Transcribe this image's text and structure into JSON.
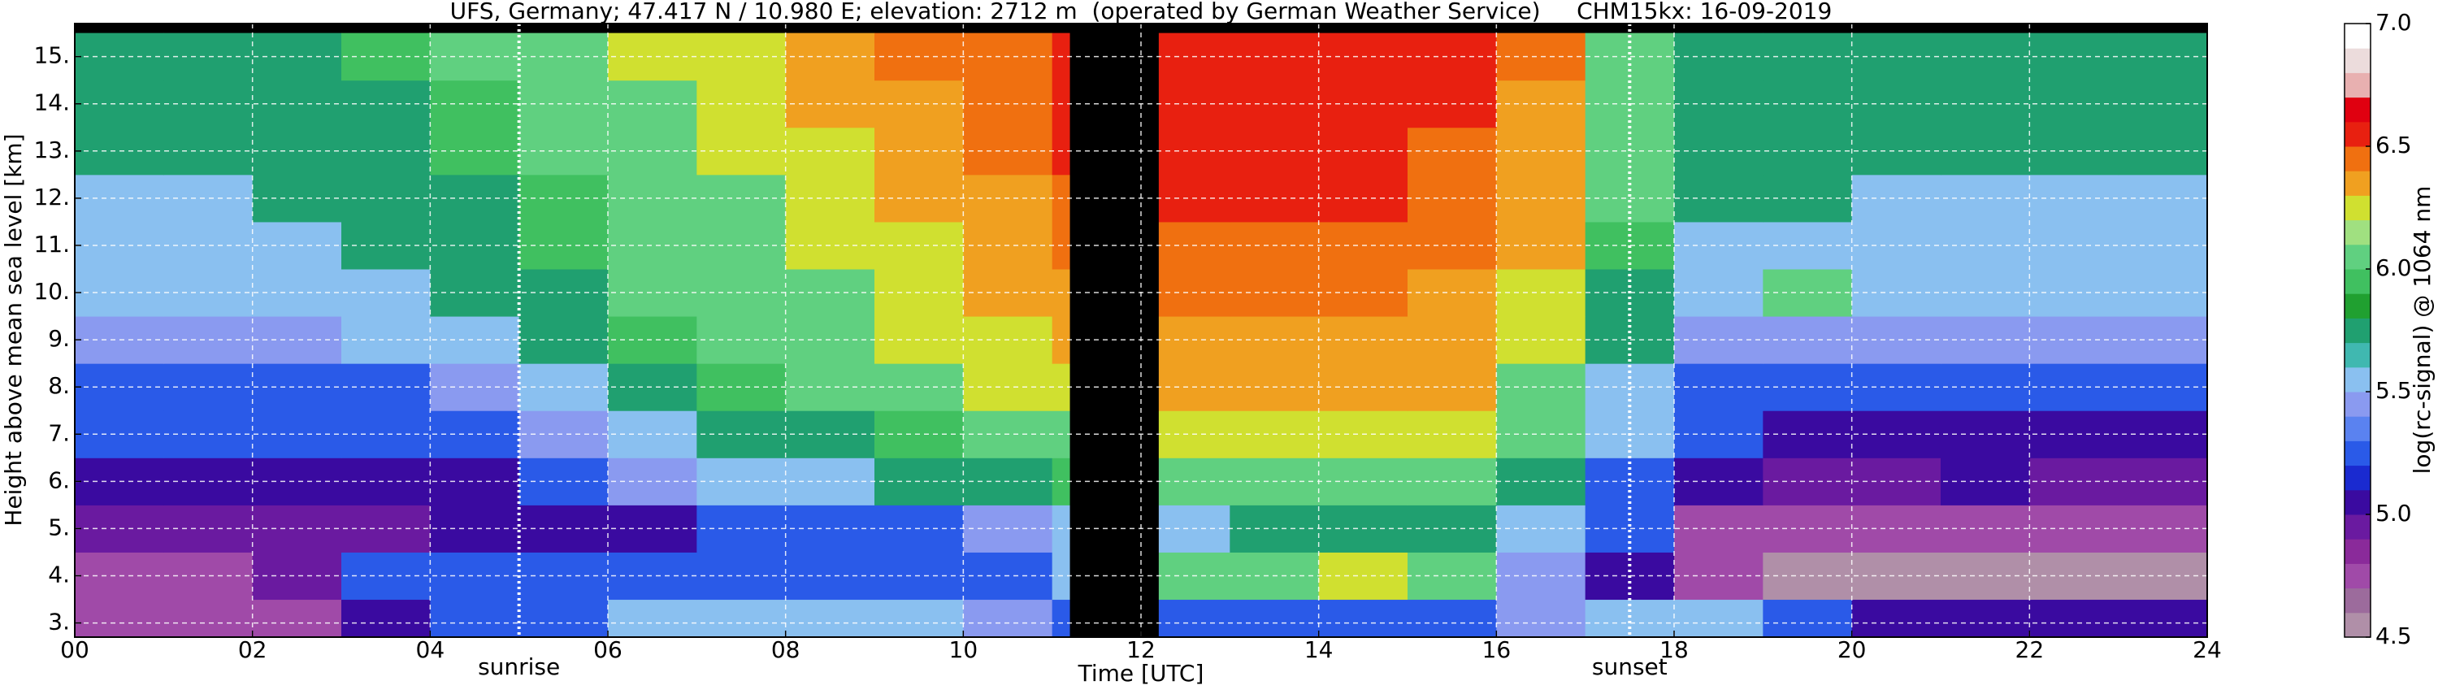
{
  "chart_data": {
    "type": "heatmap",
    "title": "UFS, Germany; 47.417 N / 10.980 E; elevation: 2712 m  (operated by German Weather Service)     CHM15kx: 16-09-2019",
    "xlabel": "Time [UTC]",
    "ylabel": "Height above mean sea level [km]",
    "xlim": [
      0,
      24
    ],
    "xticks": [
      {
        "value": 0,
        "label": "00"
      },
      {
        "value": 2,
        "label": "02"
      },
      {
        "value": 4,
        "label": "04"
      },
      {
        "value": 6,
        "label": "06"
      },
      {
        "value": 8,
        "label": "08"
      },
      10,
      12,
      14,
      16,
      18,
      20,
      22,
      24
    ],
    "ylim": [
      2.7,
      15.7
    ],
    "yticks": [
      {
        "value": 3,
        "label": "3."
      },
      {
        "value": 4,
        "label": "4."
      },
      {
        "value": 5,
        "label": "5."
      },
      {
        "value": 6,
        "label": "6."
      },
      {
        "value": 7,
        "label": "7."
      },
      {
        "value": 8,
        "label": "8."
      },
      {
        "value": 9,
        "label": "9."
      },
      {
        "value": 10,
        "label": "10."
      },
      {
        "value": 11,
        "label": "11."
      },
      {
        "value": 12,
        "label": "12."
      },
      {
        "value": 13,
        "label": "13."
      },
      {
        "value": 14,
        "label": "14."
      },
      {
        "value": 15,
        "label": "15."
      }
    ],
    "grid": true,
    "markers": [
      {
        "label": "sunrise",
        "x": 5.0
      },
      {
        "label": "sunset",
        "x": 17.5
      }
    ],
    "no_data": [
      11.2,
      12.2
    ],
    "x": [
      0,
      1,
      2,
      3,
      4,
      5,
      6,
      7,
      8,
      9,
      10,
      11,
      12,
      13,
      14,
      15,
      16,
      17,
      18,
      19,
      20,
      21,
      22,
      23
    ],
    "y": [
      3,
      4,
      5,
      6,
      7,
      8,
      9,
      10,
      11,
      12,
      13,
      14,
      15
    ],
    "z": [
      [
        4.7,
        4.7,
        4.8,
        5.0,
        5.2,
        5.3,
        5.5,
        5.6,
        5.6,
        5.5,
        5.4,
        5.3,
        5.3,
        5.3,
        5.3,
        5.3,
        5.4,
        5.5,
        5.5,
        5.2,
        5.1,
        5.0,
        5.0,
        5.0
      ],
      [
        4.8,
        4.8,
        4.9,
        5.2,
        5.3,
        5.3,
        5.3,
        5.2,
        5.2,
        5.2,
        5.2,
        5.6,
        6.0,
        6.1,
        6.2,
        6.1,
        5.4,
        5.0,
        4.7,
        4.6,
        4.6,
        4.6,
        4.6,
        4.6
      ],
      [
        4.9,
        4.9,
        4.9,
        4.9,
        5.0,
        5.0,
        5.1,
        5.2,
        5.2,
        5.3,
        5.4,
        5.5,
        5.6,
        5.7,
        5.8,
        5.8,
        5.5,
        5.2,
        4.8,
        4.7,
        4.7,
        4.7,
        4.7,
        4.7
      ],
      [
        5.0,
        5.0,
        5.0,
        5.0,
        5.1,
        5.2,
        5.4,
        5.5,
        5.6,
        5.7,
        5.8,
        5.9,
        6.0,
        6.1,
        6.1,
        6.1,
        5.8,
        5.3,
        5.0,
        4.9,
        4.9,
        5.0,
        4.9,
        4.9
      ],
      [
        5.2,
        5.2,
        5.2,
        5.2,
        5.3,
        5.4,
        5.6,
        5.7,
        5.8,
        5.9,
        6.0,
        6.1,
        6.2,
        6.2,
        6.2,
        6.2,
        6.0,
        5.5,
        5.2,
        5.1,
        5.1,
        5.1,
        5.1,
        5.1
      ],
      [
        5.3,
        5.3,
        5.3,
        5.3,
        5.4,
        5.6,
        5.8,
        5.9,
        6.0,
        6.1,
        6.2,
        6.2,
        6.3,
        6.3,
        6.3,
        6.3,
        6.1,
        5.6,
        5.3,
        5.3,
        5.3,
        5.3,
        5.3,
        5.3
      ],
      [
        5.4,
        5.4,
        5.4,
        5.5,
        5.6,
        5.7,
        5.9,
        6.0,
        6.1,
        6.2,
        6.2,
        6.3,
        6.3,
        6.3,
        6.3,
        6.3,
        6.2,
        5.7,
        5.4,
        5.4,
        5.4,
        5.4,
        5.4,
        5.4
      ],
      [
        5.5,
        5.5,
        5.5,
        5.6,
        5.7,
        5.8,
        6.0,
        6.1,
        6.1,
        6.2,
        6.3,
        6.3,
        6.4,
        6.4,
        6.4,
        6.3,
        6.2,
        5.8,
        5.5,
        6.0,
        5.5,
        5.5,
        5.5,
        5.5
      ],
      [
        5.6,
        5.6,
        5.6,
        5.7,
        5.8,
        5.9,
        6.0,
        6.1,
        6.2,
        6.2,
        6.3,
        6.4,
        6.4,
        6.4,
        6.4,
        6.4,
        6.3,
        5.9,
        5.6,
        5.6,
        5.6,
        5.6,
        5.6,
        5.6
      ],
      [
        5.6,
        5.6,
        5.7,
        5.7,
        5.8,
        5.9,
        6.1,
        6.1,
        6.2,
        6.3,
        6.3,
        6.4,
        6.5,
        6.5,
        6.5,
        6.4,
        6.3,
        6.0,
        5.7,
        5.7,
        5.6,
        5.6,
        5.6,
        5.6
      ],
      [
        5.7,
        5.7,
        5.7,
        5.8,
        5.9,
        6.0,
        6.1,
        6.2,
        6.2,
        6.3,
        6.4,
        6.5,
        6.5,
        6.5,
        6.5,
        6.4,
        6.3,
        6.0,
        5.7,
        5.7,
        5.7,
        5.7,
        5.7,
        5.7
      ],
      [
        5.7,
        5.7,
        5.8,
        5.8,
        5.9,
        6.0,
        6.1,
        6.2,
        6.3,
        6.3,
        6.4,
        6.5,
        6.5,
        6.5,
        6.5,
        6.5,
        6.3,
        6.0,
        5.8,
        5.7,
        5.7,
        5.7,
        5.7,
        5.7
      ],
      [
        5.8,
        5.8,
        5.8,
        5.9,
        6.0,
        6.0,
        6.2,
        6.2,
        6.3,
        6.4,
        6.4,
        6.5,
        6.6,
        6.6,
        6.5,
        6.5,
        6.4,
        6.1,
        5.8,
        5.8,
        5.8,
        5.8,
        5.8,
        5.8
      ]
    ],
    "colorbar": {
      "label": "log(rc-signal) @ 1064 nm",
      "lim": [
        4.5,
        7.0
      ],
      "ticks": [
        4.5,
        {
          "value": 5.0,
          "label": "5.0"
        },
        5.5,
        {
          "value": 6.0,
          "label": "6.0"
        },
        6.5,
        {
          "value": 7.0,
          "label": "7.0"
        }
      ],
      "colors": [
        "#b08fa8",
        "#9c6b9c",
        "#a04aa8",
        "#8a2a9a",
        "#6a1aa0",
        "#3a0aa0",
        "#1a2ad0",
        "#2a5ae8",
        "#5a82f0",
        "#8a9af0",
        "#8ac0f0",
        "#40b8b0",
        "#20a070",
        "#20a030",
        "#40c060",
        "#60d080",
        "#a0e080",
        "#d0e030",
        "#f0a020",
        "#f07010",
        "#e82010",
        "#e00010",
        "#e8b0b0",
        "#ecdcdc",
        "#ffffff"
      ]
    }
  }
}
